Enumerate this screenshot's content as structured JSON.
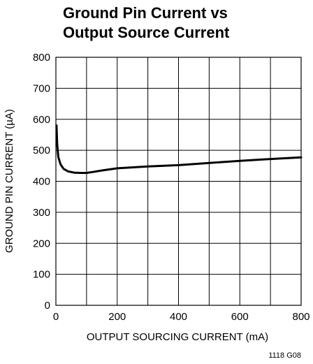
{
  "chart_data": {
    "type": "line",
    "title_lines": [
      "Ground Pin Current vs",
      "Output Source Current"
    ],
    "xlabel": "OUTPUT SOURCING CURRENT (mA)",
    "ylabel": "GROUND PIN CURRENT (µA)",
    "xlim": [
      0,
      800
    ],
    "ylim": [
      0,
      800
    ],
    "x_ticks": [
      0,
      200,
      400,
      600,
      800
    ],
    "y_ticks": [
      0,
      100,
      200,
      300,
      400,
      500,
      600,
      700,
      800
    ],
    "grid": true,
    "series": [
      {
        "x": [
          2,
          4,
          8,
          15,
          25,
          40,
          60,
          80,
          100,
          120,
          150,
          200,
          300,
          400,
          500,
          600,
          700,
          800
        ],
        "y": [
          580,
          520,
          478,
          455,
          440,
          432,
          428,
          427,
          427,
          430,
          435,
          442,
          448,
          452,
          459,
          466,
          472,
          477
        ]
      }
    ],
    "figure_id": "1118 G08"
  }
}
